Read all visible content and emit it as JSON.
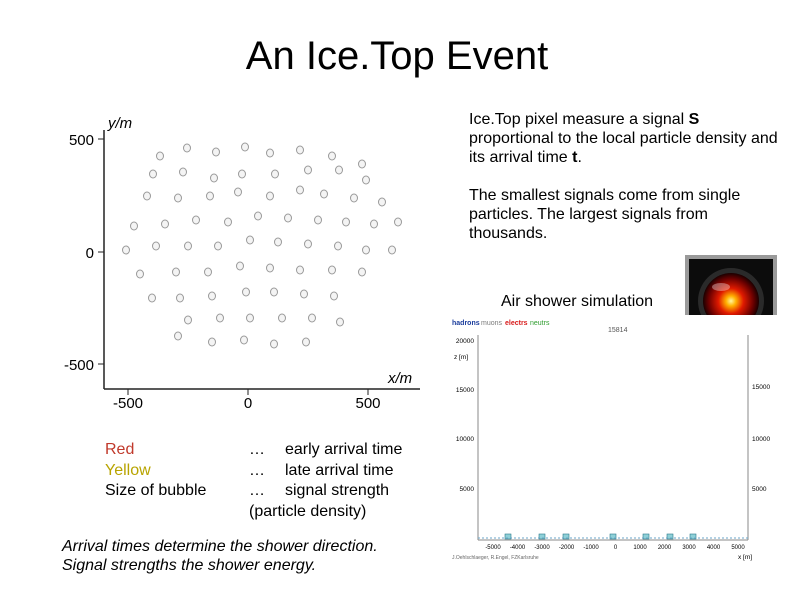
{
  "slide": {
    "title": "An Ice.Top Event"
  },
  "description": {
    "p1_before_s": "Ice.Top pixel measure a signal ",
    "p1_s": "S",
    "p1_middle": " proportional to the local particle density and its arrival time ",
    "p1_t": "t",
    "p1_end": ".",
    "p2": "The smallest signals come from single particles. The largest signals from thousands."
  },
  "event_plot": {
    "y_axis_label": "y/m",
    "x_axis_label": "x/m",
    "y_ticks": [
      "500",
      "0",
      "-500"
    ],
    "x_ticks": [
      "-500",
      "0",
      "500"
    ]
  },
  "legend": {
    "rows": [
      {
        "term": "Red",
        "color": "#c0392b",
        "meaning": "early arrival time"
      },
      {
        "term": "Yellow",
        "color": "#b8a400",
        "meaning": "late arrival time"
      },
      {
        "term": "Size of bubble",
        "color": "#000000",
        "meaning": "signal strength"
      }
    ],
    "ellipsis": "…",
    "meaning_suffix": "(particle density)"
  },
  "conclusion": {
    "line1": "Arrival times determine the shower direction.",
    "line2": "Signal strengths the shower energy."
  },
  "simulation": {
    "label": "Air shower simulation",
    "legend": [
      {
        "text": "hadrons",
        "color": "#1a3c9c"
      },
      {
        "text": "muons",
        "color": "#7a7a7a"
      },
      {
        "text": "electrs",
        "color": "#d81b1b"
      },
      {
        "text": "neutrs",
        "color": "#2e9c2e"
      }
    ],
    "frame_number": "15814",
    "y_axis_label": "z [m]",
    "x_axis_label": "x [m]",
    "left_y_ticks": [
      "20000",
      "15000",
      "10000",
      "5000"
    ],
    "right_y_ticks": [
      "15000",
      "10000",
      "5000"
    ],
    "x_ticks": [
      "-5000",
      "-4000",
      "-3000",
      "-2000",
      "-1000",
      "0",
      "1000",
      "2000",
      "3000",
      "4000",
      "5000"
    ],
    "credit": "J.Oehlschlaeger, R.Engel, FZKarlsruhe"
  },
  "hal_image": {
    "icon": "hal-9000-eye-icon"
  }
}
